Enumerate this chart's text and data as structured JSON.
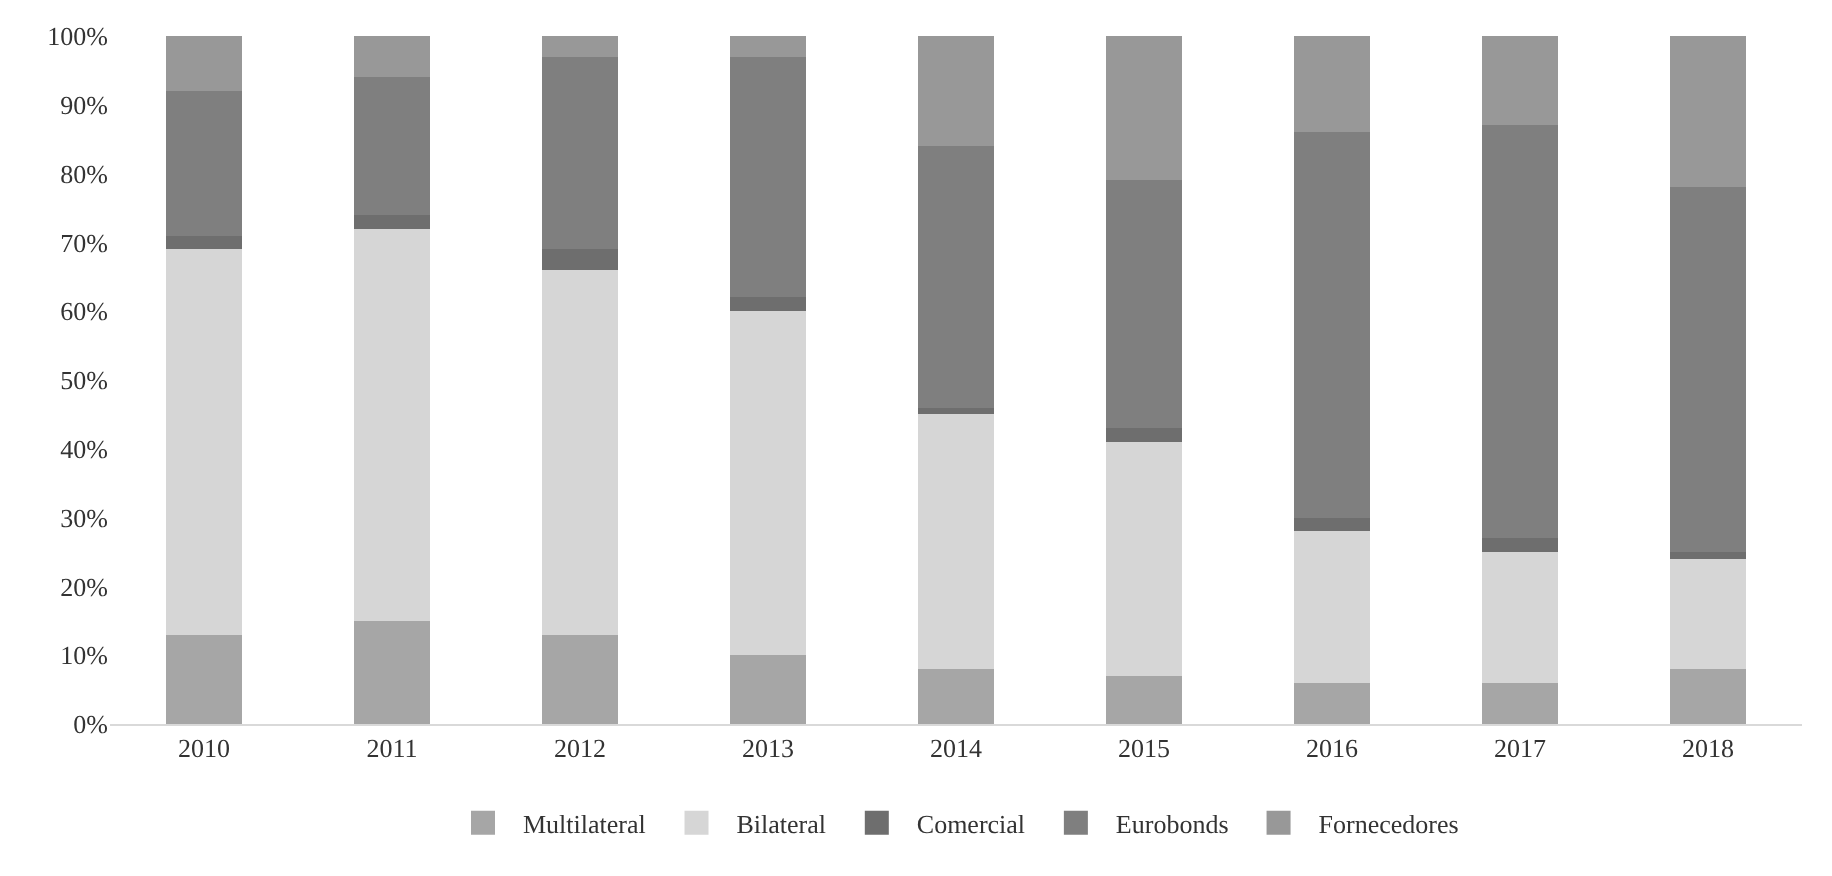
{
  "chart_data": {
    "type": "bar",
    "stacked": true,
    "categories": [
      "2010",
      "2011",
      "2012",
      "2013",
      "2014",
      "2015",
      "2016",
      "2017",
      "2018"
    ],
    "series": [
      {
        "name": "Multilateral",
        "color": "#a6a6a6",
        "values": [
          13,
          15,
          13,
          10,
          8,
          7,
          6,
          6,
          8
        ]
      },
      {
        "name": "Bilateral",
        "color": "#d6d6d6",
        "values": [
          56,
          57,
          53,
          50,
          37,
          34,
          22,
          19,
          16
        ]
      },
      {
        "name": "Comercial",
        "color": "#6e6e6e",
        "values": [
          2,
          2,
          3,
          2,
          1,
          2,
          2,
          2,
          1
        ]
      },
      {
        "name": "Eurobonds",
        "color": "#7f7f7f",
        "values": [
          21,
          20,
          28,
          35,
          38,
          36,
          56,
          60,
          53
        ]
      },
      {
        "name": "Fornecedores",
        "color": "#989898",
        "values": [
          8,
          6,
          3,
          3,
          16,
          21,
          14,
          13,
          22
        ]
      }
    ],
    "ylim": [
      0,
      100
    ],
    "yticks": [
      {
        "value": 0,
        "label": "0%"
      },
      {
        "value": 10,
        "label": "10%"
      },
      {
        "value": 20,
        "label": "20%"
      },
      {
        "value": 30,
        "label": "30%"
      },
      {
        "value": 40,
        "label": "40%"
      },
      {
        "value": 50,
        "label": "50%"
      },
      {
        "value": 60,
        "label": "60%"
      },
      {
        "value": 70,
        "label": "70%"
      },
      {
        "value": 80,
        "label": "80%"
      },
      {
        "value": 90,
        "label": "90%"
      },
      {
        "value": 100,
        "label": "100%"
      }
    ],
    "legend": "bottom"
  }
}
